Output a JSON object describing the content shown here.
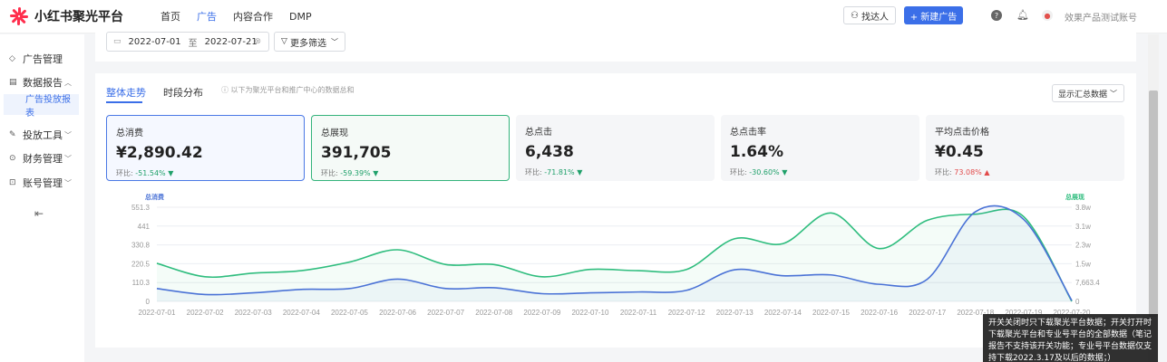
{
  "app": {
    "title": "小红书聚光平台"
  },
  "nav": {
    "items": [
      "首页",
      "广告",
      "内容合作",
      "DMP"
    ],
    "active": 1
  },
  "header": {
    "find_talent": "找达人",
    "new_ad": "+ 新建广告",
    "account": "效果产品测试账号"
  },
  "sidebar": {
    "items": [
      {
        "label": "广告管理",
        "icon": "tag-icon"
      },
      {
        "label": "数据报告",
        "icon": "report-icon",
        "expanded": true
      },
      {
        "label": "投放工具",
        "icon": "tool-icon"
      },
      {
        "label": "财务管理",
        "icon": "finance-icon"
      },
      {
        "label": "账号管理",
        "icon": "account-icon"
      }
    ],
    "sub_item": "广告投放报表"
  },
  "filters": {
    "date_start": "2022-07-01",
    "date_sep": "至",
    "date_end": "2022-07-21",
    "more": "更多筛选"
  },
  "tabs": {
    "overall": "整体走势",
    "period": "时段分布"
  },
  "hint": "以下为聚光平台和推广中心的数据总和",
  "select": {
    "value": "显示汇总数据"
  },
  "metrics": [
    {
      "label": "总消费",
      "value": "¥2,890.42",
      "cmp_label": "环比:",
      "cmp": "-51.54%",
      "dir": "down"
    },
    {
      "label": "总展现",
      "value": "391,705",
      "cmp_label": "环比:",
      "cmp": "-59.39%",
      "dir": "down"
    },
    {
      "label": "总点击",
      "value": "6,438",
      "cmp_label": "环比:",
      "cmp": "-71.81%",
      "dir": "down"
    },
    {
      "label": "总点击率",
      "value": "1.64%",
      "cmp_label": "环比:",
      "cmp": "-30.60%",
      "dir": "down"
    },
    {
      "label": "平均点击价格",
      "value": "¥0.45",
      "cmp_label": "环比:",
      "cmp": "73.08%",
      "dir": "up"
    }
  ],
  "tooltip": "开关关闭时只下载聚光平台数据；开关打开时下载聚光平台和专业号平台的全部数据（笔记报告不支持该开关功能；专业号平台数据仅支持下载2022.3.17及以后的数据；）",
  "chart_data": {
    "type": "line",
    "left_axis_title": "总消费",
    "right_axis_title": "总展现",
    "left_ticks": [
      "551.3",
      "441",
      "330.8",
      "220.5",
      "110.3",
      "0"
    ],
    "right_ticks": [
      "3.8w",
      "3.1w",
      "2.3w",
      "1.5w",
      "7,663.4",
      "0"
    ],
    "ylim_left": [
      0,
      551.3
    ],
    "ylim_right": [
      0,
      38317
    ],
    "categories": [
      "2022-07-01",
      "2022-07-02",
      "2022-07-03",
      "2022-07-04",
      "2022-07-05",
      "2022-07-06",
      "2022-07-07",
      "2022-07-08",
      "2022-07-09",
      "2022-07-10",
      "2022-07-11",
      "2022-07-12",
      "2022-07-13",
      "2022-07-14",
      "2022-07-15",
      "2022-07-16",
      "2022-07-17",
      "2022-07-18",
      "2022-07-19",
      "2022-07-20"
    ],
    "colors": {
      "spend": "#4a72d6",
      "impressions": "#2fbd7e"
    },
    "series": [
      {
        "name": "总消费",
        "axis": "left",
        "values": [
          75,
          40,
          50,
          70,
          75,
          130,
          75,
          80,
          45,
          50,
          55,
          65,
          185,
          150,
          155,
          100,
          130,
          525,
          480,
          5
        ]
      },
      {
        "name": "总展现",
        "axis": "right",
        "values": [
          15500,
          10000,
          11500,
          12500,
          16000,
          21000,
          15000,
          15000,
          10000,
          13000,
          12500,
          13000,
          25500,
          23500,
          36000,
          21500,
          33000,
          35500,
          34500,
          0
        ]
      }
    ]
  }
}
